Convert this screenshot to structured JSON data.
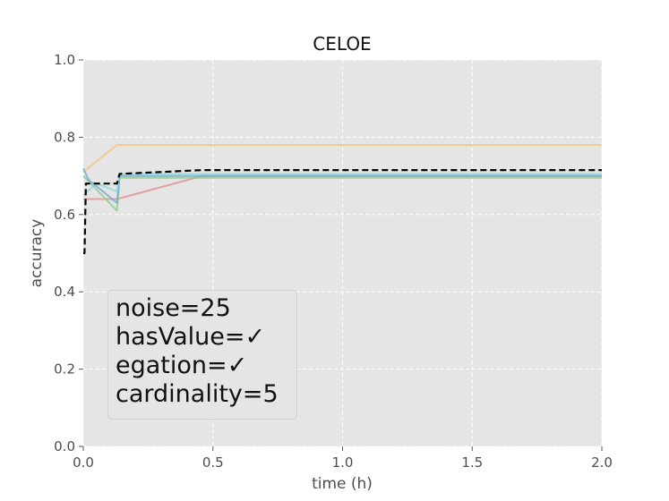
{
  "chart_data": {
    "type": "line",
    "title": "CELOE",
    "xlabel": "time (h)",
    "ylabel": "accuracy",
    "xlim": [
      0,
      2.0
    ],
    "ylim": [
      0,
      1.0
    ],
    "xticks": [
      "0.0",
      "0.5",
      "1.0",
      "1.5",
      "2.0"
    ],
    "yticks": [
      "0.0",
      "0.2",
      "0.4",
      "0.6",
      "0.8",
      "1.0"
    ],
    "grid": true,
    "legend_placement": "bottom-left",
    "legend_lines": [
      "noise=25",
      "hasValue=✓",
      "egation=✓",
      "cardinality=5"
    ],
    "series": [
      {
        "color": "#f2c27c",
        "style": "solid",
        "x": [
          0,
          0.13,
          2.0
        ],
        "y": [
          0.71,
          0.78,
          0.78
        ]
      },
      {
        "color": "#e08b8b",
        "style": "solid",
        "x": [
          0,
          0.13,
          0.46,
          2.0
        ],
        "y": [
          0.64,
          0.64,
          0.7,
          0.7
        ]
      },
      {
        "color": "#89c98b",
        "style": "solid",
        "x": [
          0,
          0.13,
          0.14,
          2.0
        ],
        "y": [
          0.7,
          0.61,
          0.695,
          0.695
        ]
      },
      {
        "color": "#6aa7cf",
        "style": "solid",
        "x": [
          0,
          0.02,
          0.13,
          0.14,
          2.0
        ],
        "y": [
          0.72,
          0.69,
          0.63,
          0.7,
          0.7
        ]
      },
      {
        "color": "#8ad7df",
        "style": "solid",
        "x": [
          0,
          0.05,
          0.13,
          0.14,
          2.0
        ],
        "y": [
          0.65,
          0.68,
          0.66,
          0.705,
          0.705
        ]
      },
      {
        "color": "#000000",
        "style": "dashed",
        "x": [
          0,
          0.005,
          0.01,
          0.13,
          0.14,
          0.46,
          2.0
        ],
        "y": [
          0.5,
          0.5,
          0.68,
          0.68,
          0.705,
          0.715,
          0.715
        ]
      }
    ]
  }
}
